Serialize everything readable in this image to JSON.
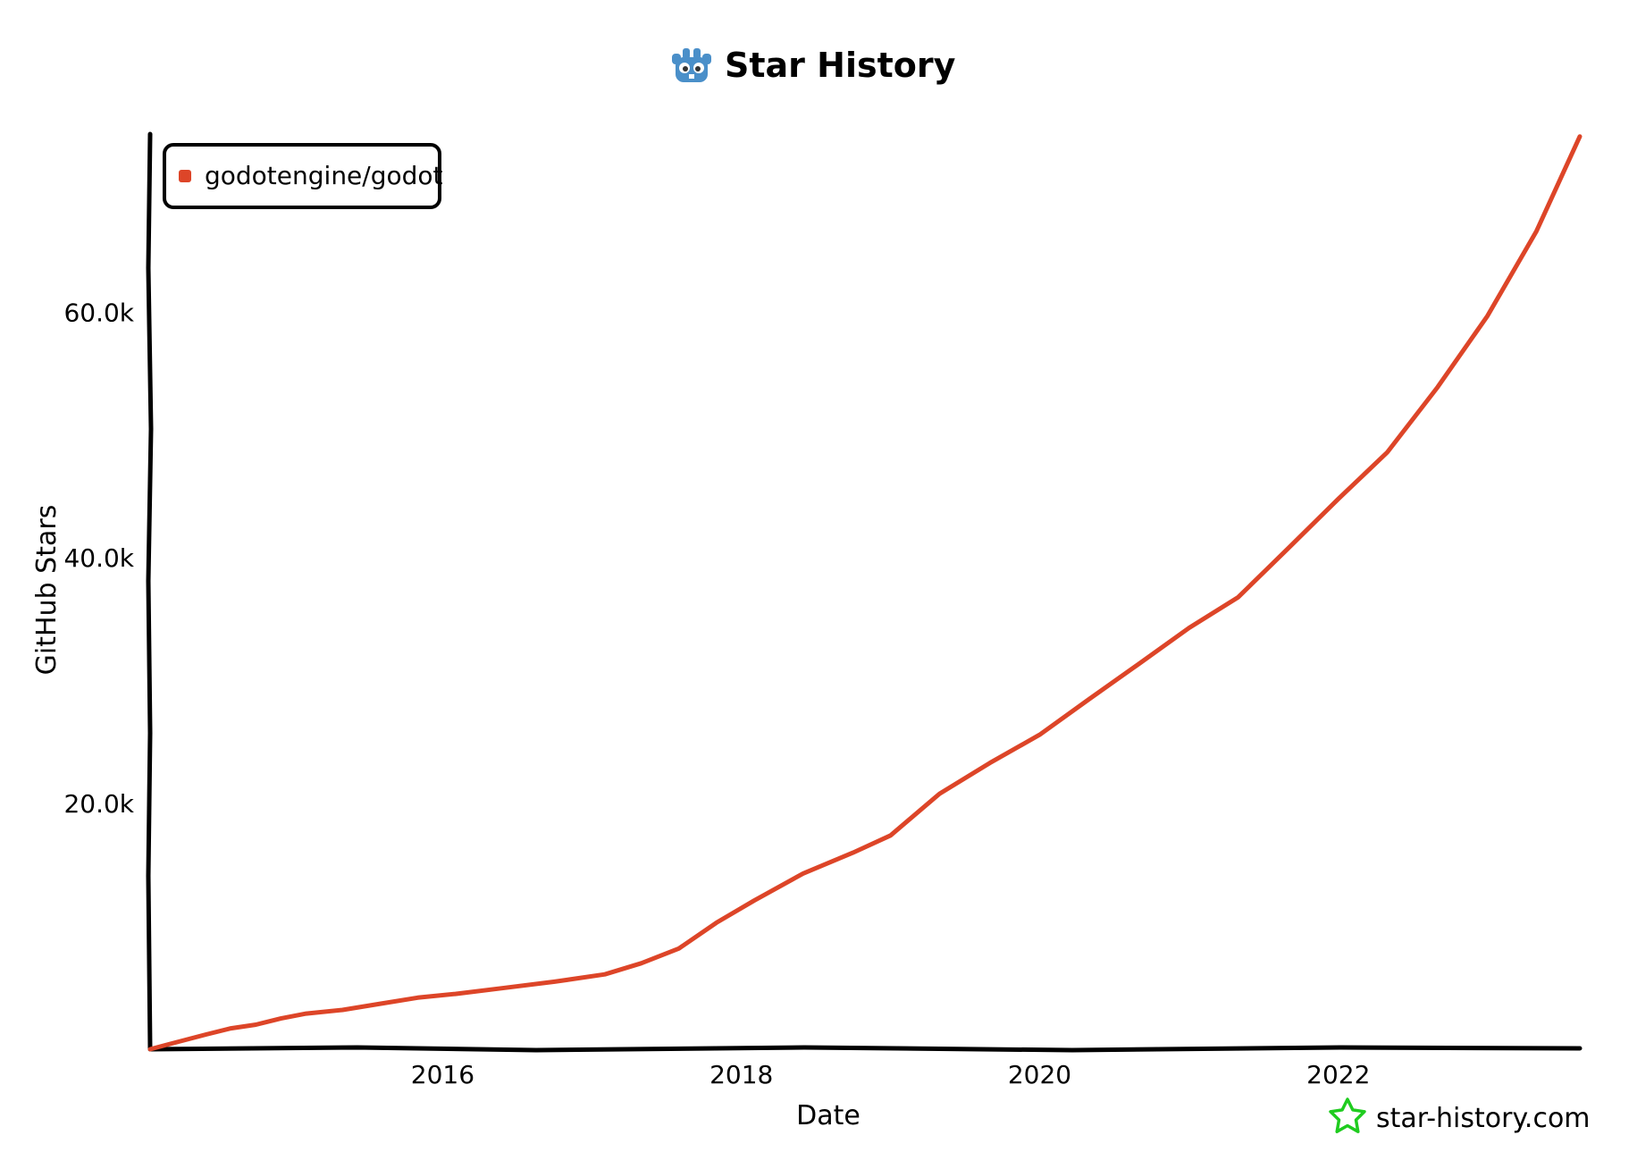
{
  "title": "Star History",
  "watermark": "star-history.com",
  "colors": {
    "series": "#dd4528",
    "axis": "#000000",
    "logo": "#4a8fc9",
    "watermark_star": "#1fcc1f"
  },
  "icons": {
    "title_logo": "godot-logo-icon",
    "watermark": "star-outline-icon"
  },
  "chart_data": {
    "type": "line",
    "title": "Star History",
    "xlabel": "Date",
    "ylabel": "GitHub Stars",
    "x_ticks": [
      "2016",
      "2018",
      "2020",
      "2022"
    ],
    "y_ticks": [
      "20.0k",
      "40.0k",
      "60.0k"
    ],
    "xlim": [
      "2014-01-15",
      "2023-08-15"
    ],
    "ylim": [
      0,
      74500
    ],
    "grid": false,
    "legend_position": "top-left",
    "series": [
      {
        "name": "godotengine/godot",
        "color": "#dd4528",
        "points": [
          {
            "x": "2014-01-15",
            "y": 0
          },
          {
            "x": "2014-03-01",
            "y": 400
          },
          {
            "x": "2014-06-01",
            "y": 1200
          },
          {
            "x": "2014-08-01",
            "y": 1700
          },
          {
            "x": "2014-10-01",
            "y": 2000
          },
          {
            "x": "2014-12-01",
            "y": 2500
          },
          {
            "x": "2015-02-01",
            "y": 2900
          },
          {
            "x": "2015-05-01",
            "y": 3200
          },
          {
            "x": "2015-08-01",
            "y": 3700
          },
          {
            "x": "2015-11-01",
            "y": 4200
          },
          {
            "x": "2016-02-01",
            "y": 4500
          },
          {
            "x": "2016-06-01",
            "y": 5000
          },
          {
            "x": "2016-10-01",
            "y": 5500
          },
          {
            "x": "2017-02-01",
            "y": 6100
          },
          {
            "x": "2017-05-01",
            "y": 7000
          },
          {
            "x": "2017-08-01",
            "y": 8200
          },
          {
            "x": "2017-11-01",
            "y": 10300
          },
          {
            "x": "2018-02-01",
            "y": 12100
          },
          {
            "x": "2018-06-01",
            "y": 14300
          },
          {
            "x": "2018-10-01",
            "y": 16000
          },
          {
            "x": "2019-01-01",
            "y": 17400
          },
          {
            "x": "2019-05-01",
            "y": 20800
          },
          {
            "x": "2019-09-01",
            "y": 23300
          },
          {
            "x": "2020-01-01",
            "y": 25600
          },
          {
            "x": "2020-05-01",
            "y": 28500
          },
          {
            "x": "2020-09-01",
            "y": 31400
          },
          {
            "x": "2021-01-01",
            "y": 34300
          },
          {
            "x": "2021-05-01",
            "y": 36800
          },
          {
            "x": "2021-09-01",
            "y": 40800
          },
          {
            "x": "2022-01-01",
            "y": 44800
          },
          {
            "x": "2022-05-01",
            "y": 48600
          },
          {
            "x": "2022-09-01",
            "y": 53900
          },
          {
            "x": "2023-01-01",
            "y": 59700
          },
          {
            "x": "2023-05-01",
            "y": 66600
          },
          {
            "x": "2023-08-15",
            "y": 74300
          }
        ]
      }
    ]
  }
}
